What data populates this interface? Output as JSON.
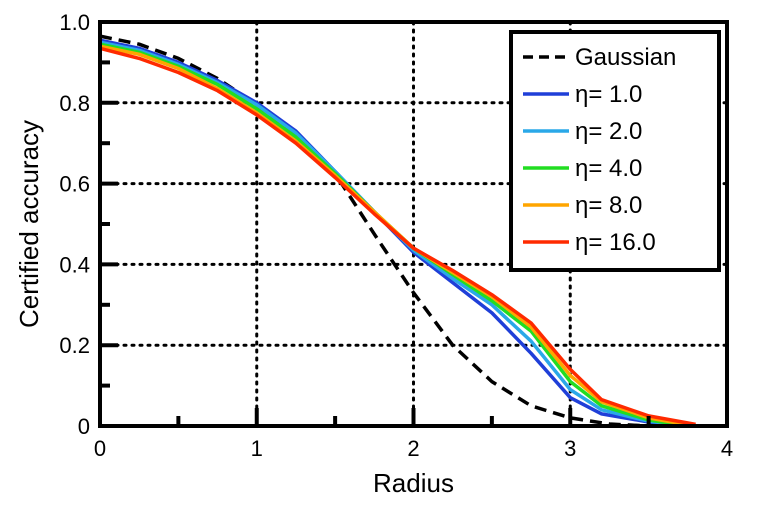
{
  "chart_data": {
    "type": "line",
    "title": "",
    "xlabel": "Radius",
    "ylabel": "Certified accuracy",
    "xlim": [
      0,
      4
    ],
    "ylim": [
      0,
      1
    ],
    "xticks": [
      0,
      1,
      2,
      3,
      4
    ],
    "xtick_labels": [
      "0",
      "1",
      "2",
      "3",
      "4"
    ],
    "yticks": [
      0,
      0.2,
      0.4,
      0.6,
      0.8,
      1.0
    ],
    "ytick_labels": [
      "0",
      "0.2",
      "0.4",
      "0.6",
      "0.8",
      "1.0"
    ],
    "grid": true,
    "legend_position": "top-right",
    "series": [
      {
        "name": "Gaussian",
        "color": "#000000",
        "dash": "dashed",
        "x": [
          0,
          0.25,
          0.5,
          0.75,
          1.0,
          1.25,
          1.5,
          1.75,
          2.0,
          2.25,
          2.5,
          2.75,
          3.0,
          3.25,
          3.5
        ],
        "y": [
          0.965,
          0.945,
          0.91,
          0.86,
          0.795,
          0.72,
          0.625,
          0.475,
          0.33,
          0.2,
          0.11,
          0.05,
          0.02,
          0.005,
          0.0
        ]
      },
      {
        "name": "η= 1.0",
        "color": "#1f3fd8",
        "dash": "solid",
        "x": [
          0,
          0.25,
          0.5,
          0.75,
          1.0,
          1.25,
          1.5,
          1.75,
          2.0,
          2.25,
          2.5,
          2.75,
          3.0,
          3.2,
          3.5,
          3.75
        ],
        "y": [
          0.955,
          0.935,
          0.9,
          0.855,
          0.8,
          0.73,
          0.63,
          0.53,
          0.43,
          0.355,
          0.28,
          0.18,
          0.07,
          0.03,
          0.01,
          0.0
        ]
      },
      {
        "name": "η= 2.0",
        "color": "#2aa8e8",
        "dash": "solid",
        "x": [
          0,
          0.25,
          0.5,
          0.75,
          1.0,
          1.25,
          1.5,
          1.75,
          2.0,
          2.25,
          2.5,
          2.75,
          3.0,
          3.2,
          3.5,
          3.75
        ],
        "y": [
          0.95,
          0.93,
          0.895,
          0.85,
          0.795,
          0.725,
          0.63,
          0.53,
          0.435,
          0.365,
          0.3,
          0.21,
          0.09,
          0.04,
          0.012,
          0.0
        ]
      },
      {
        "name": "η= 4.0",
        "color": "#22dd22",
        "dash": "solid",
        "x": [
          0,
          0.25,
          0.5,
          0.75,
          1.0,
          1.25,
          1.5,
          1.75,
          2.0,
          2.25,
          2.5,
          2.75,
          3.0,
          3.2,
          3.5,
          3.75
        ],
        "y": [
          0.945,
          0.925,
          0.89,
          0.845,
          0.785,
          0.715,
          0.625,
          0.53,
          0.44,
          0.375,
          0.31,
          0.235,
          0.11,
          0.05,
          0.015,
          0.0
        ]
      },
      {
        "name": "η= 8.0",
        "color": "#ffa500",
        "dash": "solid",
        "x": [
          0,
          0.25,
          0.5,
          0.75,
          1.0,
          1.25,
          1.5,
          1.75,
          2.0,
          2.25,
          2.5,
          2.75,
          3.0,
          3.2,
          3.5,
          3.75
        ],
        "y": [
          0.94,
          0.92,
          0.885,
          0.835,
          0.775,
          0.705,
          0.62,
          0.53,
          0.44,
          0.38,
          0.32,
          0.245,
          0.125,
          0.06,
          0.02,
          0.003
        ]
      },
      {
        "name": "η= 16.0",
        "color": "#ff2a00",
        "dash": "solid",
        "x": [
          0,
          0.25,
          0.5,
          0.75,
          1.0,
          1.25,
          1.5,
          1.75,
          2.0,
          2.25,
          2.5,
          2.75,
          3.0,
          3.2,
          3.5,
          3.8
        ],
        "y": [
          0.935,
          0.91,
          0.875,
          0.83,
          0.77,
          0.7,
          0.615,
          0.525,
          0.44,
          0.385,
          0.325,
          0.255,
          0.14,
          0.065,
          0.025,
          0.004
        ]
      }
    ]
  }
}
